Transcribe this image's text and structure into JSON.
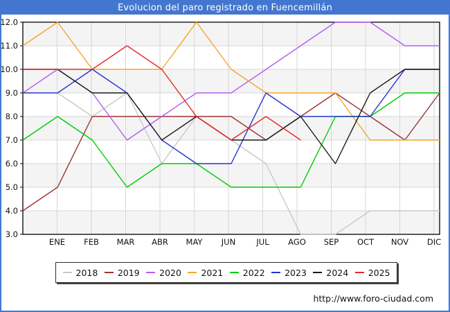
{
  "title": "Evolucion del paro registrado en Fuencemillán",
  "footer": {
    "url": "http://www.foro-ciudad.com"
  },
  "style": {
    "titlebar_blue": "#4377cf",
    "grid_color": "#d6d6d6",
    "band_color": "#f4f4f4",
    "axis_color": "#000000",
    "label_color": "#111111"
  },
  "chart_data": {
    "type": "line",
    "title": "Evolucion del paro registrado en Fuencemillán",
    "categories": [
      "ENE",
      "FEB",
      "MAR",
      "ABR",
      "MAY",
      "JUN",
      "JUL",
      "AGO",
      "SEP",
      "OCT",
      "NOV",
      "DIC"
    ],
    "ylim": [
      3.0,
      12.0
    ],
    "y_ticks": [
      12.0,
      11.0,
      10.0,
      9.0,
      8.0,
      7.0,
      6.0,
      5.0,
      4.0,
      3.0
    ],
    "grid": true,
    "legend_position": "bottom",
    "series": [
      {
        "name": "2018",
        "color": "#c8c8c8",
        "prev_dec": null,
        "values": [
          9,
          8,
          9,
          6,
          8,
          7,
          6,
          3,
          3,
          4,
          4,
          4
        ]
      },
      {
        "name": "2019",
        "color": "#993333",
        "prev_dec": 4,
        "values": [
          5,
          8,
          8,
          8,
          8,
          8,
          7,
          8,
          9,
          8,
          7,
          9
        ]
      },
      {
        "name": "2020",
        "color": "#b55cf2",
        "prev_dec": 9,
        "values": [
          10,
          9,
          7,
          8,
          9,
          9,
          10,
          11,
          12,
          12,
          11,
          11
        ]
      },
      {
        "name": "2021",
        "color": "#f5a52a",
        "prev_dec": 11,
        "values": [
          12,
          10,
          10,
          10,
          12,
          10,
          9,
          9,
          9,
          7,
          7,
          7
        ]
      },
      {
        "name": "2022",
        "color": "#00cc00",
        "prev_dec": 7,
        "values": [
          8,
          7,
          5,
          6,
          6,
          5,
          5,
          5,
          8,
          8,
          9,
          9
        ]
      },
      {
        "name": "2023",
        "color": "#2233cc",
        "prev_dec": 9,
        "values": [
          9,
          10,
          9,
          7,
          6,
          6,
          9,
          8,
          8,
          8,
          10,
          10
        ]
      },
      {
        "name": "2024",
        "color": "#1a1a1a",
        "prev_dec": 10,
        "values": [
          10,
          9,
          9,
          7,
          8,
          7,
          7,
          8,
          6,
          9,
          10,
          10
        ]
      },
      {
        "name": "2025",
        "color": "#e82828",
        "prev_dec": 10,
        "values": [
          10,
          10,
          11,
          10,
          8,
          7,
          8,
          7,
          null,
          null,
          null,
          null
        ]
      }
    ]
  }
}
